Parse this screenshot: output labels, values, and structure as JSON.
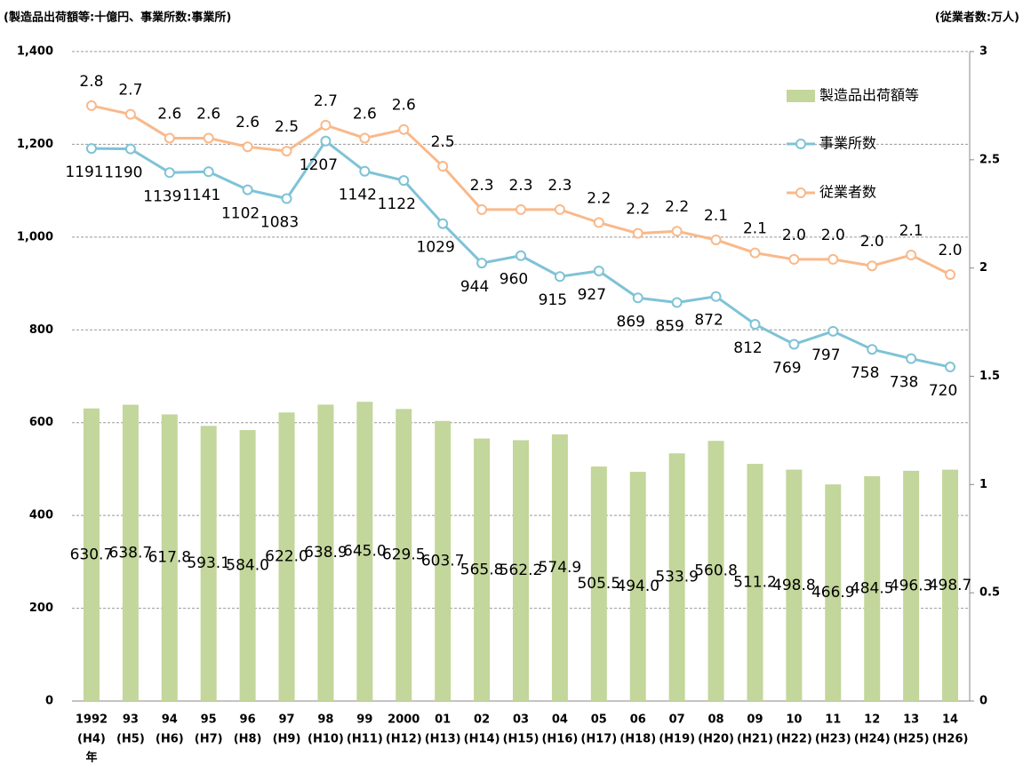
{
  "chart_data": {
    "type": "bar",
    "title": "(製造品出荷額等:十億円、事業所数:事業所)",
    "y2_title": "(従業者数:万人)",
    "x_unit": "年",
    "categories": [
      "1992",
      "93",
      "94",
      "95",
      "96",
      "97",
      "98",
      "99",
      "2000",
      "01",
      "02",
      "03",
      "04",
      "05",
      "06",
      "07",
      "08",
      "09",
      "10",
      "11",
      "12",
      "13",
      "14"
    ],
    "category_sublabels": [
      "(H4)",
      "(H5)",
      "(H6)",
      "(H7)",
      "(H8)",
      "(H9)",
      "(H10)",
      "(H11)",
      "(H12)",
      "(H13)",
      "(H14)",
      "(H15)",
      "(H16)",
      "(H17)",
      "(H18)",
      "(H19)",
      "(H20)",
      "(H21)",
      "(H22)",
      "(H23)",
      "(H24)",
      "(H25)",
      "(H26)"
    ],
    "series": [
      {
        "name": "製造品出荷額等",
        "type": "bar",
        "color": "#c3d69b",
        "values": [
          630.7,
          638.7,
          617.8,
          593.1,
          584.0,
          622.0,
          638.9,
          645.0,
          629.5,
          603.7,
          565.8,
          562.2,
          574.9,
          505.5,
          494.0,
          533.9,
          560.8,
          511.2,
          498.8,
          466.9,
          484.5,
          496.3,
          498.7
        ],
        "value_labels": [
          "630.7",
          "638.7",
          "617.8",
          "593.1",
          "584.0",
          "622.0",
          "638.9",
          "645.0",
          "629.5",
          "603.7",
          "565.8",
          "562.2",
          "574.9",
          "505.5",
          "494.0",
          "533.9",
          "560.8",
          "511.2",
          "498.8",
          "466.9",
          "484.5",
          "496.3",
          "498.7"
        ]
      },
      {
        "name": "事業所数",
        "type": "line",
        "color": "#7fc3d6",
        "values": [
          1191,
          1190,
          1139,
          1141,
          1102,
          1083,
          1207,
          1142,
          1122,
          1029,
          944,
          960,
          915,
          927,
          869,
          859,
          872,
          812,
          769,
          797,
          758,
          738,
          720
        ]
      },
      {
        "name": "従業者数",
        "type": "line",
        "axis": "y2",
        "color": "#f9b98a",
        "values": [
          2.75,
          2.71,
          2.6,
          2.6,
          2.56,
          2.54,
          2.66,
          2.6,
          2.64,
          2.47,
          2.27,
          2.27,
          2.27,
          2.21,
          2.16,
          2.17,
          2.13,
          2.07,
          2.04,
          2.04,
          2.01,
          2.06,
          1.97
        ],
        "value_labels": [
          "2.8",
          "2.7",
          "2.6",
          "2.6",
          "2.6",
          "2.5",
          "2.7",
          "2.6",
          "2.6",
          "2.5",
          "2.3",
          "2.3",
          "2.3",
          "2.2",
          "2.2",
          "2.2",
          "2.1",
          "2.1",
          "2.0",
          "2.0",
          "2.0",
          "2.1",
          "2.0"
        ]
      }
    ],
    "ylim": [
      0,
      1400
    ],
    "yticks": [
      0,
      200,
      400,
      600,
      800,
      {
        "value": 1000,
        "label": "1,000"
      },
      {
        "value": 1200,
        "label": "1,200"
      },
      {
        "value": 1400,
        "label": "1,400"
      }
    ],
    "y2lim": [
      0,
      3
    ],
    "y2ticks": [
      0,
      0.5,
      1,
      1.5,
      2,
      2.5,
      3
    ],
    "grid": true
  }
}
